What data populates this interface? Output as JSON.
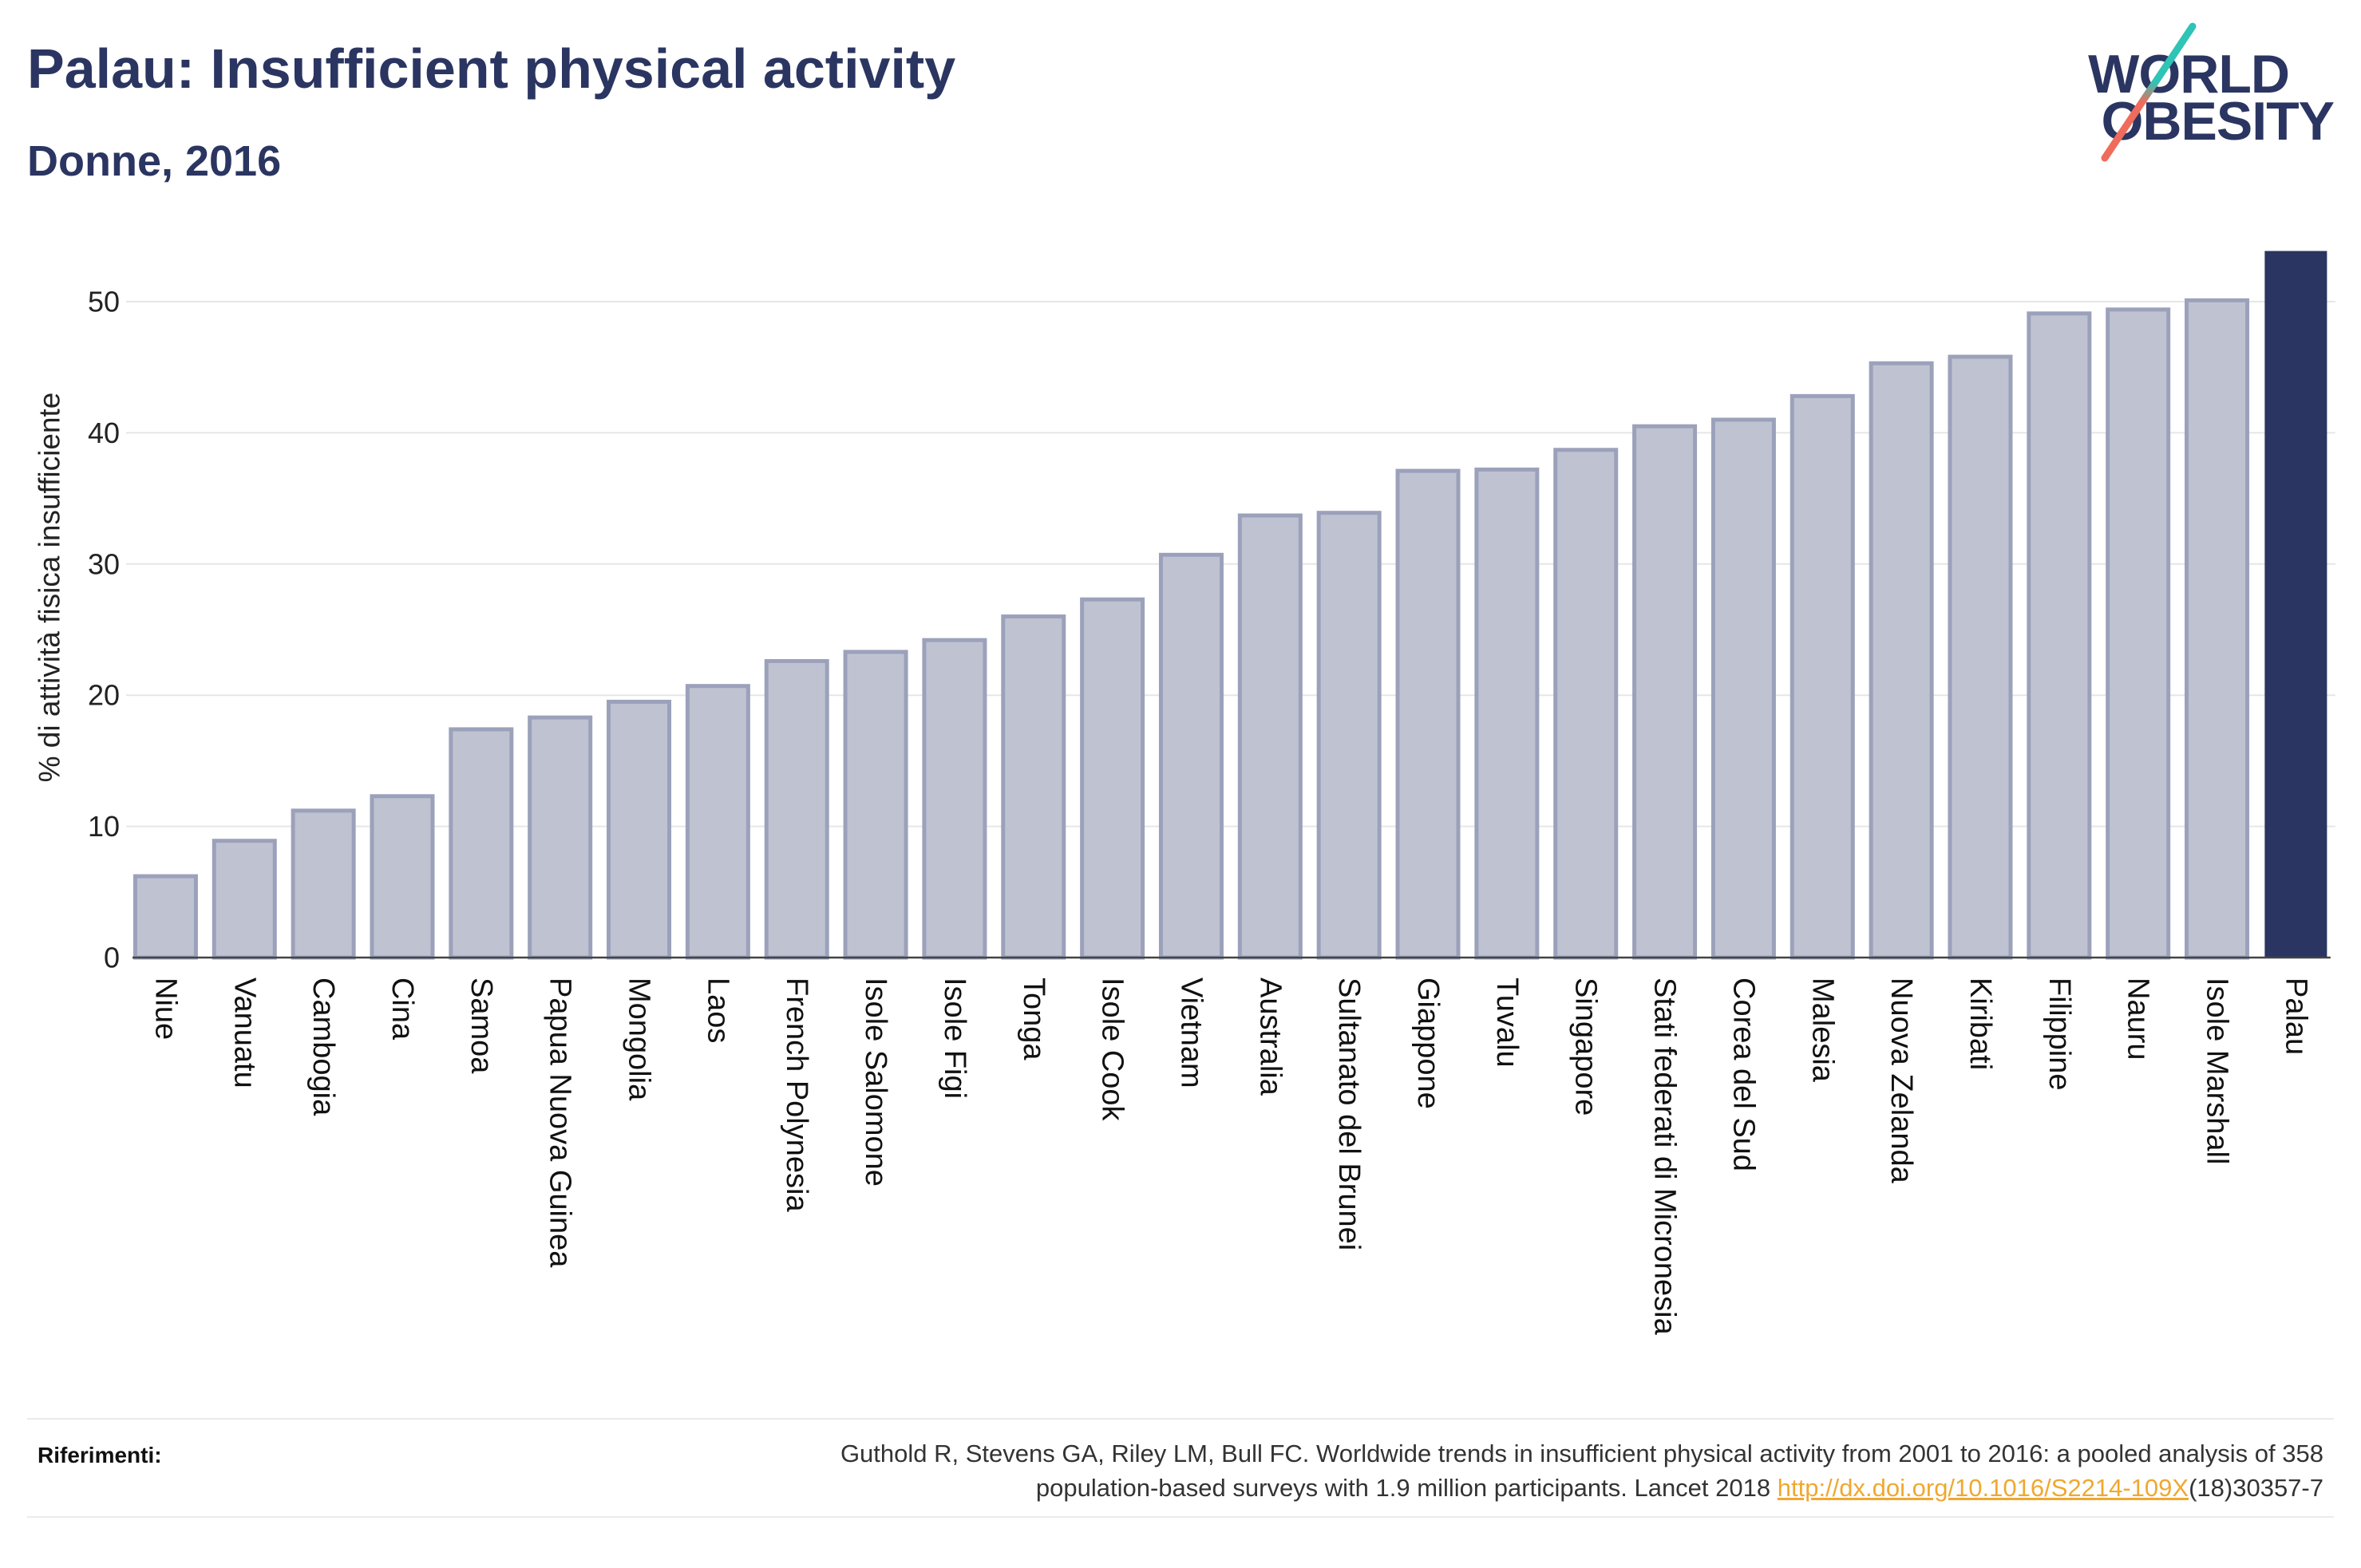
{
  "chart_data": {
    "type": "bar",
    "title": "Palau: Insufficient physical activity",
    "subtitle": "Donne, 2016",
    "ylabel": "% di attività fisica insufficiente",
    "categories": [
      "Niue",
      "Vanuatu",
      "Cambogia",
      "Cina",
      "Samoa",
      "Papua Nuova Guinea",
      "Mongolia",
      "Laos",
      "French Polynesia",
      "Isole Salomone",
      "Isole Figi",
      "Tonga",
      "Isole Cook",
      "Vietnam",
      "Australia",
      "Sultanato del Brunei",
      "Giappone",
      "Tuvalu",
      "Singapore",
      "Stati federati di Micronesia",
      "Corea del Sud",
      "Malesia",
      "Nuova Zelanda",
      "Kiribati",
      "Filippine",
      "Nauru",
      "Isole Marshall",
      "Palau"
    ],
    "values": [
      6.2,
      8.9,
      11.2,
      12.3,
      17.4,
      18.3,
      19.5,
      20.7,
      22.6,
      23.3,
      24.2,
      26.0,
      27.3,
      30.7,
      33.7,
      33.9,
      37.1,
      37.2,
      38.7,
      40.5,
      41.0,
      42.8,
      45.3,
      45.8,
      49.1,
      49.4,
      50.1,
      53.8
    ],
    "highlight": "Palau",
    "ylim": [
      0,
      56.6
    ],
    "yticks": [
      0,
      10,
      20,
      30,
      40,
      50
    ],
    "grid": true,
    "colors": {
      "bar": "#bfc3d1",
      "bar_border": "#9ca1bb",
      "highlight": "#2b3561",
      "grid": "#e6e6e6",
      "axis": "#444444"
    }
  },
  "logo": {
    "line1": "WORLD",
    "line2": "OBESITY",
    "colors": {
      "text": "#2b3561",
      "slash_top": "#2ec4b6",
      "slash_bottom": "#ef6b5b"
    }
  },
  "references": {
    "label": "Riferimenti:",
    "line1": "Guthold R, Stevens GA, Riley LM, Bull FC. Worldwide trends in insufficient physical activity from 2001 to 2016: a pooled analysis of 358",
    "line2_text": "population-based surveys with 1.9 million participants. Lancet 2018",
    "link_text": "http://dx.doi.org/10.1016/S2214-109X",
    "line2_suffix": "(18)30357-7",
    "link_color": "#f0a830"
  }
}
